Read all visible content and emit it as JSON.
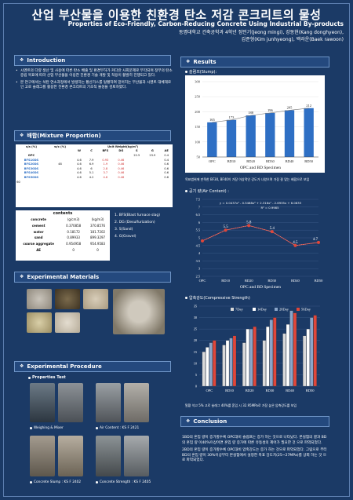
{
  "header": {
    "title": "산업 부산물을 이용한 친환경 탄소 저감 콘크리트의 물성",
    "subtitle": "Properties of Eco-Friendly, Carbon-Reducing Concrete Using Industrial By-products",
    "authors_line1": "동명대학교 건축공학과 4학년 정민기(Jeong mingi), 강동현(Kang donghyeon),",
    "authors_line2": "김준형(Kim junhyeong), 백라운(Baek rawoon)"
  },
  "sections": {
    "intro": "Introduction",
    "mix": "배합(Mixture Proportion)",
    "materials": "Experimental Materials",
    "procedure": "Experimental Procedure",
    "results": "Results",
    "conclusion": "Conclusion"
  },
  "intro": {
    "p1": "시멘트의 다량 생산 및 사용에 따른 탄소 배출 및 환경부하가 커다란 사회문제로 부각되며 정부의 탄소 중립 목표에 따라 산업 부산물을 이용한 친환경 기술 개발 및 적용이 활발히 진행되고 있다.",
    "p2": "본 연구에서는 석탄 연소과정에서 발생하는 황산가스를 탈황하여 얻어지는 부산물과 시멘트 대체재로인 고로 슬래그를 활용한 친환경 콘크리트의 기초적 물성을 검토하였다."
  },
  "mix_table": {
    "h_ratio": "s/a (%)",
    "h_wc": "w/c (%)",
    "h_unit": "Unit Weight(kg/m³)",
    "cols": [
      "W",
      "C",
      "BFS",
      "DG",
      "S",
      "G",
      "AE"
    ],
    "wc_val": "48",
    "sa_val": "60",
    "rows": [
      {
        "name": "OPC",
        "vals": [
          "",
          "",
          "",
          "",
          "22.5",
          "23.9",
          "0.4"
        ]
      },
      {
        "name": "BFS10DS",
        "vals": [
          "4.6",
          "7.9",
          "0.93",
          "0.46",
          "",
          "",
          "0.4"
        ]
      },
      {
        "name": "BFS20DS",
        "vals": [
          "4.6",
          "6.9",
          "1.9",
          "0.46",
          "",
          "",
          "0.6"
        ]
      },
      {
        "name": "BFS30DS",
        "vals": [
          "4.6",
          "6",
          "2.8",
          "0.46",
          "",
          "",
          "0.6"
        ]
      },
      {
        "name": "BFS40DS",
        "vals": [
          "4.6",
          "5.1",
          "3.7",
          "0.46",
          "",
          "",
          "0.6"
        ]
      },
      {
        "name": "BFS50DS",
        "vals": [
          "4.6",
          "4.2",
          "4.6",
          "0.46",
          "",
          "",
          "0.6"
        ]
      }
    ]
  },
  "contents_table": {
    "title": "contents",
    "h1": "(g/cm3)",
    "h2": "(kg/m3)",
    "rows": [
      {
        "name": "concrete",
        "a": "(g/cm3)",
        "b": "(kg/m3)"
      },
      {
        "name": "cement",
        "a": "0.370858",
        "b": "370.8576"
      },
      {
        "name": "water",
        "a": "0.18172",
        "b": "181.7202"
      },
      {
        "name": "sand",
        "a": "0.89933",
        "b": "899.3297"
      },
      {
        "name": "coarse aggregate",
        "a": "0.954958",
        "b": "954.9583"
      },
      {
        "name": "AE",
        "a": "0",
        "b": "0"
      }
    ]
  },
  "legend_notes": [
    "1. BFS(Blast furnace slag)",
    "2. DG (Desulfurization)",
    "3. S(Sand)",
    "4. G(Gravel)"
  ],
  "procedure": {
    "properties_test": "Properties Test",
    "captions": [
      "Weighing & Mixer",
      "Air Content : KS F 2421",
      "Concrete Slump : KS F 2402",
      "Concrete Strength : KS F 2405"
    ]
  },
  "results": {
    "slump_label": "슬럼프(Slump):",
    "air_label": "공기 량(Air Content) :",
    "comp_label": "압축강도(Compressive Strength)",
    "slump_note": "목표범위에 만족한 BF30, BF40이 가장 이상적인 강도가 나왔으며 가장 잘 맞는 배합으로 보임",
    "comp_note": "탈황 석고 5% 고로 슬래그 40%를 혼입 시 32.95MPa로 가장 높은 압축강도를 보임",
    "xlabel": "OPC and BD Specimen",
    "equation": "y = 0.0437x⁴ - 0.5468x³ + 2.316x² - 2.6935x + 6.0833",
    "r2": "R² = 0.9985"
  },
  "chart_data": [
    {
      "type": "bar",
      "title": "",
      "xlabel": "OPC and BD Specimen",
      "ylabel": "",
      "categories": [
        "OPC",
        "BD10",
        "BD20",
        "BD30",
        "BD40",
        "BD50"
      ],
      "values": [
        165,
        173,
        188,
        196,
        205,
        212
      ],
      "ylim": [
        50,
        300
      ],
      "yticks": [
        50,
        100,
        150,
        200,
        250,
        300
      ]
    },
    {
      "type": "line",
      "title": "",
      "xlabel": "OPC and BD Specimen",
      "categories": [
        "OPC",
        "BD10",
        "BD20",
        "BD30",
        "BD40",
        "BD50"
      ],
      "values": [
        4.8,
        5.5,
        5.8,
        5.4,
        4.5,
        4.7
      ],
      "labels": [
        "",
        "5.5",
        "5.8",
        "5.4",
        "4.5",
        "4.7"
      ],
      "ylim": [
        2.5,
        7.5
      ],
      "yticks": [
        2.5,
        3,
        3.5,
        4,
        4.5,
        5,
        5.5,
        6,
        6.5,
        7,
        7.5
      ]
    },
    {
      "type": "bar",
      "title": "",
      "categories": [
        "OPC",
        "BD10",
        "BD20",
        "BD30",
        "BD40",
        "BD50"
      ],
      "series": [
        {
          "name": "7Day",
          "values": [
            15,
            18,
            19,
            20,
            23,
            22
          ]
        },
        {
          "name": "14Day",
          "values": [
            17,
            20,
            25,
            26,
            27,
            25
          ]
        },
        {
          "name": "28Day",
          "values": [
            19,
            21,
            25,
            29,
            33,
            30
          ]
        },
        {
          "name": "56Day",
          "values": [
            20,
            22,
            26,
            30,
            32,
            31
          ]
        }
      ],
      "ylim": [
        0,
        35
      ],
      "yticks": [
        0,
        5,
        10,
        15,
        20,
        25,
        30,
        35
      ]
    }
  ],
  "conclusion": {
    "p1": "1BD의 혼입 량이 증가할수록 OPC대비 슬럼프는 증가 하는 것으로 나타났다. 본실험의 결과 BD의 혼입 량 이40%이상이면 혼입 량 증가에 따른 유동성의 제어가 필요한 것 으로 파악되었다.",
    "p2": "2BD의 혼입 량이 증가할수록 OPC대비 압축강도는 증가 하는 것으로 파악되었다. 그림으로 부터 BD의 혼입 량이 30%이상부터 본실험에서 설정한 목표 강도치(25~27MPa)를 상회 하는 것 으로 파악되었다."
  },
  "colors": {
    "bg": "#1b3a66",
    "slump_bar": "#2e6fc4",
    "air_line": "#e0463a",
    "series": [
      "#d9d9d9",
      "#ffffff",
      "#8aa5c9",
      "#e0463a"
    ]
  }
}
